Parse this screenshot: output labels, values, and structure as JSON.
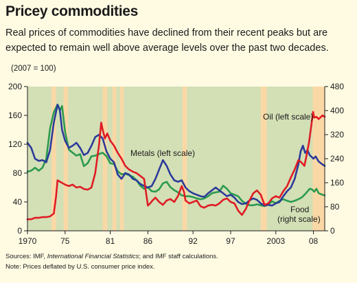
{
  "title": "Pricey commodities",
  "subtitle": "Real prices of commodities have declined from their recent peaks but are expected to remain well above average levels over the past two decades.",
  "unit_note": "(2007 =  100)",
  "footnotes": {
    "sources_prefix": "Sources: IMF, ",
    "sources_italic": "International Financial Statistics",
    "sources_suffix": "; and IMF staff calculations.",
    "note": "Note: Prices deflated by U.S. consumer price index."
  },
  "colors": {
    "plot_background": "#d3dfb5",
    "shading": "#fad8a6",
    "metals": "#2b3a9a",
    "oil": "#e01b24",
    "food": "#2a9a4e",
    "page": "#fffbe3"
  },
  "chart_data": {
    "type": "line",
    "x_tick_labels": [
      "1970",
      "75",
      "81",
      "86",
      "92",
      "97",
      "2003",
      "08"
    ],
    "x_tick_values": [
      1970,
      1975,
      1981,
      1986,
      1992,
      1997,
      2003,
      2008
    ],
    "xlim": [
      1970,
      2009.5
    ],
    "y_left": {
      "label": "",
      "lim": [
        0,
        200
      ],
      "ticks": [
        0,
        40,
        80,
        120,
        160,
        200
      ]
    },
    "y_right": {
      "label": "",
      "lim": [
        0,
        480
      ],
      "ticks": [
        0,
        80,
        160,
        240,
        320,
        400,
        480
      ]
    },
    "grid": false,
    "shaded_periods": [
      [
        1973.2,
        1973.8
      ],
      [
        1974.8,
        1975.4
      ],
      [
        1980.0,
        1980.6
      ],
      [
        1981.3,
        1981.8
      ],
      [
        1982.3,
        1982.8
      ],
      [
        1990.6,
        1991.2
      ],
      [
        2001.0,
        2001.8
      ],
      [
        2007.9,
        2009.5
      ]
    ],
    "annotations": [
      {
        "text": "Metals (left scale)",
        "series": "metals"
      },
      {
        "text": "Oil (left scale)",
        "series": "oil"
      },
      {
        "text": "Food",
        "series": "food"
      },
      {
        "text": "(right scale)",
        "series": "food"
      }
    ],
    "series": [
      {
        "name": "Metals",
        "axis": "left",
        "color": "#2b3a9a",
        "points": [
          [
            1970.0,
            122
          ],
          [
            1970.5,
            115
          ],
          [
            1971.0,
            100
          ],
          [
            1971.5,
            97
          ],
          [
            1972.0,
            98
          ],
          [
            1972.5,
            95
          ],
          [
            1973.0,
            112
          ],
          [
            1973.5,
            150
          ],
          [
            1974.0,
            175
          ],
          [
            1974.3,
            168
          ],
          [
            1974.6,
            140
          ],
          [
            1975.0,
            125
          ],
          [
            1975.5,
            115
          ],
          [
            1976.0,
            118
          ],
          [
            1976.5,
            122
          ],
          [
            1977.0,
            115
          ],
          [
            1977.5,
            105
          ],
          [
            1978.0,
            108
          ],
          [
            1978.5,
            118
          ],
          [
            1979.0,
            130
          ],
          [
            1979.5,
            133
          ],
          [
            1980.0,
            128
          ],
          [
            1980.5,
            110
          ],
          [
            1981.0,
            100
          ],
          [
            1981.5,
            95
          ],
          [
            1982.0,
            78
          ],
          [
            1982.5,
            72
          ],
          [
            1983.0,
            80
          ],
          [
            1983.5,
            78
          ],
          [
            1984.0,
            72
          ],
          [
            1984.5,
            70
          ],
          [
            1985.0,
            65
          ],
          [
            1985.5,
            62
          ],
          [
            1986.0,
            60
          ],
          [
            1986.5,
            62
          ],
          [
            1987.0,
            72
          ],
          [
            1987.5,
            85
          ],
          [
            1988.0,
            98
          ],
          [
            1988.5,
            90
          ],
          [
            1989.0,
            78
          ],
          [
            1989.5,
            70
          ],
          [
            1990.0,
            68
          ],
          [
            1990.5,
            70
          ],
          [
            1991.0,
            60
          ],
          [
            1991.5,
            55
          ],
          [
            1992.0,
            52
          ],
          [
            1992.5,
            50
          ],
          [
            1993.0,
            48
          ],
          [
            1993.5,
            47
          ],
          [
            1994.0,
            52
          ],
          [
            1994.5,
            56
          ],
          [
            1995.0,
            60
          ],
          [
            1995.5,
            56
          ],
          [
            1996.0,
            52
          ],
          [
            1996.5,
            48
          ],
          [
            1997.0,
            50
          ],
          [
            1997.5,
            46
          ],
          [
            1998.0,
            40
          ],
          [
            1998.5,
            37
          ],
          [
            1999.0,
            38
          ],
          [
            1999.5,
            42
          ],
          [
            2000.0,
            45
          ],
          [
            2000.5,
            43
          ],
          [
            2001.0,
            38
          ],
          [
            2001.5,
            35
          ],
          [
            2002.0,
            36
          ],
          [
            2002.5,
            35
          ],
          [
            2003.0,
            38
          ],
          [
            2003.5,
            40
          ],
          [
            2004.0,
            48
          ],
          [
            2004.5,
            55
          ],
          [
            2005.0,
            60
          ],
          [
            2005.5,
            72
          ],
          [
            2006.0,
            92
          ],
          [
            2006.3,
            110
          ],
          [
            2006.6,
            118
          ],
          [
            2006.9,
            108
          ],
          [
            2007.2,
            112
          ],
          [
            2007.5,
            105
          ],
          [
            2008.0,
            100
          ],
          [
            2008.3,
            103
          ],
          [
            2008.7,
            96
          ],
          [
            2009.2,
            92
          ],
          [
            2009.5,
            90
          ]
        ]
      },
      {
        "name": "Oil",
        "axis": "left",
        "color": "#e01b24",
        "points": [
          [
            1970.0,
            16
          ],
          [
            1970.5,
            16
          ],
          [
            1971.0,
            18
          ],
          [
            1971.5,
            18
          ],
          [
            1972.0,
            19
          ],
          [
            1972.5,
            19
          ],
          [
            1973.0,
            20
          ],
          [
            1973.5,
            24
          ],
          [
            1973.8,
            48
          ],
          [
            1974.0,
            70
          ],
          [
            1974.5,
            67
          ],
          [
            1975.0,
            64
          ],
          [
            1975.5,
            62
          ],
          [
            1976.0,
            64
          ],
          [
            1976.5,
            60
          ],
          [
            1977.0,
            61
          ],
          [
            1977.5,
            58
          ],
          [
            1978.0,
            57
          ],
          [
            1978.5,
            60
          ],
          [
            1979.0,
            80
          ],
          [
            1979.5,
            118
          ],
          [
            1979.8,
            150
          ],
          [
            1980.0,
            140
          ],
          [
            1980.3,
            128
          ],
          [
            1980.6,
            135
          ],
          [
            1981.0,
            125
          ],
          [
            1981.5,
            118
          ],
          [
            1982.0,
            108
          ],
          [
            1982.5,
            100
          ],
          [
            1983.0,
            90
          ],
          [
            1983.5,
            85
          ],
          [
            1984.0,
            82
          ],
          [
            1984.5,
            80
          ],
          [
            1985.0,
            76
          ],
          [
            1985.5,
            72
          ],
          [
            1986.0,
            35
          ],
          [
            1986.3,
            38
          ],
          [
            1986.6,
            42
          ],
          [
            1987.0,
            46
          ],
          [
            1987.5,
            40
          ],
          [
            1988.0,
            36
          ],
          [
            1988.5,
            42
          ],
          [
            1989.0,
            44
          ],
          [
            1989.5,
            40
          ],
          [
            1990.0,
            48
          ],
          [
            1990.5,
            62
          ],
          [
            1990.8,
            54
          ],
          [
            1991.0,
            42
          ],
          [
            1991.5,
            38
          ],
          [
            1992.0,
            40
          ],
          [
            1992.5,
            42
          ],
          [
            1993.0,
            34
          ],
          [
            1993.5,
            32
          ],
          [
            1994.0,
            35
          ],
          [
            1994.5,
            36
          ],
          [
            1995.0,
            35
          ],
          [
            1995.5,
            38
          ],
          [
            1996.0,
            43
          ],
          [
            1996.5,
            45
          ],
          [
            1997.0,
            40
          ],
          [
            1997.5,
            38
          ],
          [
            1998.0,
            28
          ],
          [
            1998.5,
            22
          ],
          [
            1999.0,
            30
          ],
          [
            1999.5,
            42
          ],
          [
            2000.0,
            52
          ],
          [
            2000.5,
            56
          ],
          [
            2001.0,
            50
          ],
          [
            2001.5,
            36
          ],
          [
            2002.0,
            38
          ],
          [
            2002.5,
            45
          ],
          [
            2003.0,
            48
          ],
          [
            2003.5,
            46
          ],
          [
            2004.0,
            55
          ],
          [
            2004.5,
            62
          ],
          [
            2005.0,
            74
          ],
          [
            2005.5,
            85
          ],
          [
            2006.0,
            98
          ],
          [
            2006.4,
            95
          ],
          [
            2006.8,
            90
          ],
          [
            2007.0,
            100
          ],
          [
            2007.4,
            122
          ],
          [
            2007.7,
            145
          ],
          [
            2007.95,
            165
          ],
          [
            2008.1,
            157
          ],
          [
            2008.4,
            158
          ],
          [
            2008.7,
            155
          ],
          [
            2009.2,
            160
          ],
          [
            2009.5,
            158
          ]
        ]
      },
      {
        "name": "Food",
        "axis": "right",
        "color": "#2a9a4e",
        "points": [
          [
            1970.0,
            197
          ],
          [
            1970.5,
            200
          ],
          [
            1971.0,
            210
          ],
          [
            1971.5,
            200
          ],
          [
            1972.0,
            210
          ],
          [
            1972.5,
            240
          ],
          [
            1973.0,
            340
          ],
          [
            1973.5,
            395
          ],
          [
            1974.0,
            420
          ],
          [
            1974.3,
            400
          ],
          [
            1974.6,
            415
          ],
          [
            1975.0,
            330
          ],
          [
            1975.5,
            270
          ],
          [
            1976.0,
            260
          ],
          [
            1976.5,
            250
          ],
          [
            1977.0,
            255
          ],
          [
            1977.5,
            215
          ],
          [
            1978.0,
            225
          ],
          [
            1978.5,
            248
          ],
          [
            1979.0,
            250
          ],
          [
            1979.5,
            255
          ],
          [
            1980.0,
            260
          ],
          [
            1980.5,
            248
          ],
          [
            1981.0,
            225
          ],
          [
            1981.5,
            222
          ],
          [
            1982.0,
            198
          ],
          [
            1982.5,
            188
          ],
          [
            1983.0,
            190
          ],
          [
            1983.5,
            185
          ],
          [
            1984.0,
            180
          ],
          [
            1984.5,
            168
          ],
          [
            1985.0,
            150
          ],
          [
            1985.5,
            140
          ],
          [
            1986.0,
            145
          ],
          [
            1986.5,
            132
          ],
          [
            1987.0,
            130
          ],
          [
            1987.5,
            138
          ],
          [
            1988.0,
            158
          ],
          [
            1988.5,
            163
          ],
          [
            1989.0,
            145
          ],
          [
            1989.5,
            135
          ],
          [
            1990.0,
            128
          ],
          [
            1990.5,
            118
          ],
          [
            1991.0,
            115
          ],
          [
            1991.5,
            115
          ],
          [
            1992.0,
            112
          ],
          [
            1992.5,
            108
          ],
          [
            1993.0,
            105
          ],
          [
            1993.5,
            108
          ],
          [
            1994.0,
            115
          ],
          [
            1994.5,
            125
          ],
          [
            1995.0,
            128
          ],
          [
            1995.5,
            130
          ],
          [
            1996.0,
            150
          ],
          [
            1996.5,
            140
          ],
          [
            1997.0,
            125
          ],
          [
            1997.5,
            120
          ],
          [
            1998.0,
            115
          ],
          [
            1998.5,
            100
          ],
          [
            1999.0,
            90
          ],
          [
            1999.5,
            85
          ],
          [
            2000.0,
            85
          ],
          [
            2000.5,
            88
          ],
          [
            2001.0,
            85
          ],
          [
            2001.5,
            82
          ],
          [
            2002.0,
            88
          ],
          [
            2002.5,
            98
          ],
          [
            2003.0,
            92
          ],
          [
            2003.5,
            100
          ],
          [
            2004.0,
            105
          ],
          [
            2004.5,
            100
          ],
          [
            2005.0,
            96
          ],
          [
            2005.5,
            100
          ],
          [
            2006.0,
            105
          ],
          [
            2006.5,
            112
          ],
          [
            2007.0,
            125
          ],
          [
            2007.5,
            140
          ],
          [
            2007.8,
            138
          ],
          [
            2008.1,
            130
          ],
          [
            2008.4,
            140
          ],
          [
            2008.7,
            125
          ],
          [
            2009.2,
            120
          ],
          [
            2009.5,
            118
          ]
        ]
      }
    ]
  }
}
